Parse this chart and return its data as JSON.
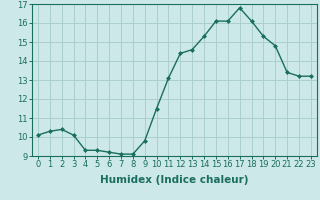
{
  "x": [
    0,
    1,
    2,
    3,
    4,
    5,
    6,
    7,
    8,
    9,
    10,
    11,
    12,
    13,
    14,
    15,
    16,
    17,
    18,
    19,
    20,
    21,
    22,
    23
  ],
  "y": [
    10.1,
    10.3,
    10.4,
    10.1,
    9.3,
    9.3,
    9.2,
    9.1,
    9.1,
    9.8,
    11.5,
    13.1,
    14.4,
    14.6,
    15.3,
    16.1,
    16.1,
    16.8,
    16.1,
    15.3,
    14.8,
    13.4,
    13.2,
    13.2
  ],
  "line_color": "#1a6e5e",
  "marker_color": "#1a6e5e",
  "bg_color": "#cce8e8",
  "grid_color": "#aacfcf",
  "xlabel": "Humidex (Indice chaleur)",
  "ylim": [
    9,
    17
  ],
  "xlim_min": -0.5,
  "xlim_max": 23.5,
  "yticks": [
    9,
    10,
    11,
    12,
    13,
    14,
    15,
    16,
    17
  ],
  "xticks": [
    0,
    1,
    2,
    3,
    4,
    5,
    6,
    7,
    8,
    9,
    10,
    11,
    12,
    13,
    14,
    15,
    16,
    17,
    18,
    19,
    20,
    21,
    22,
    23
  ],
  "tick_label_fontsize": 6,
  "xlabel_fontsize": 7.5
}
